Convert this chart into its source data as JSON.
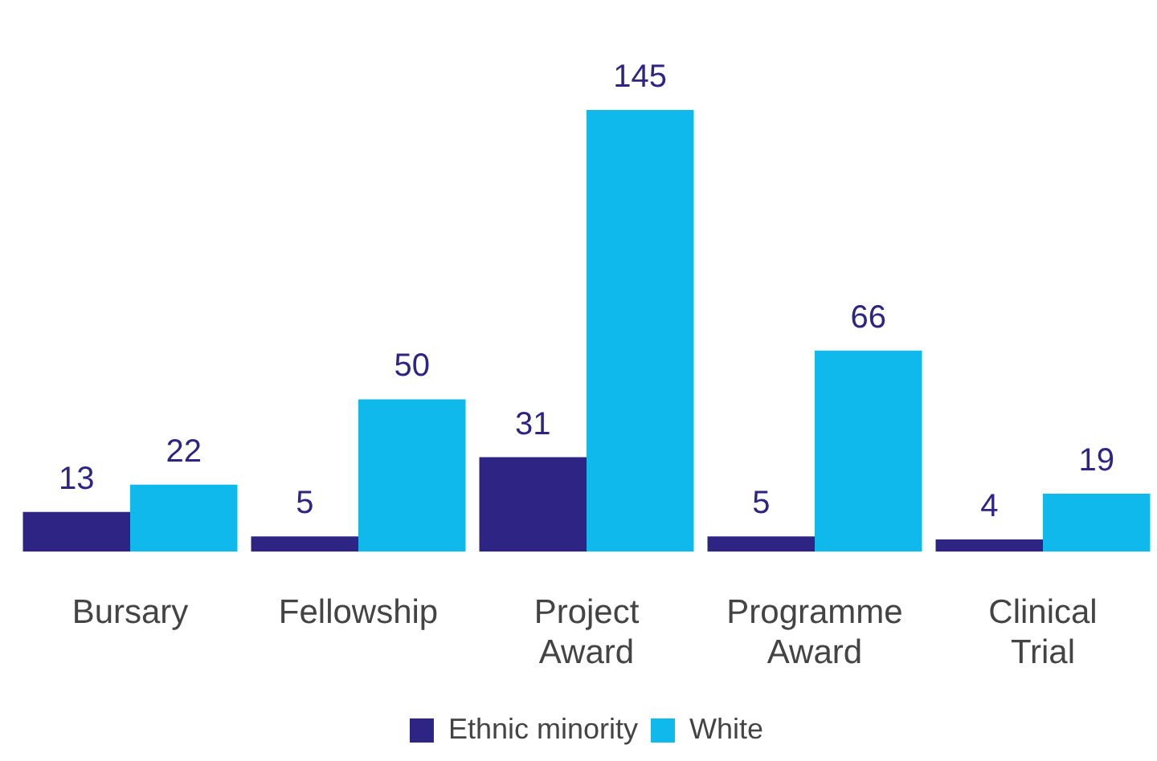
{
  "chart_data": {
    "type": "bar",
    "categories": [
      "Bursary",
      "Fellowship",
      "Project Award",
      "Programme Award",
      "Clinical Trial"
    ],
    "series": [
      {
        "name": "Ethnic minority",
        "color": "#2e2483",
        "values": [
          13,
          5,
          31,
          5,
          4
        ]
      },
      {
        "name": "White",
        "color": "#0fb9ec",
        "values": [
          22,
          50,
          145,
          66,
          19
        ]
      }
    ],
    "data_labels": true,
    "legend": "bottom",
    "grid": false
  }
}
